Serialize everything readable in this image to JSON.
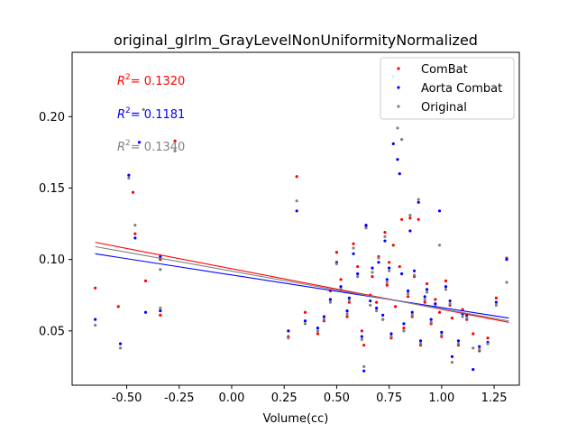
{
  "chart_data": {
    "type": "scatter",
    "title": "original_glrlm_GrayLevelNonUniformityNormalized",
    "xlabel": "Volume(cc)",
    "ylabel": "",
    "xlim": [
      -0.76,
      1.37
    ],
    "ylim": [
      0.012,
      0.245
    ],
    "xticks": [
      "-0.50",
      "-0.25",
      "0.00",
      "0.25",
      "0.50",
      "0.75",
      "1.00",
      "1.25"
    ],
    "xtick_values": [
      -0.5,
      -0.25,
      0.0,
      0.25,
      0.5,
      0.75,
      1.0,
      1.25
    ],
    "yticks": [
      "0.05",
      "0.10",
      "0.15",
      "0.20"
    ],
    "ytick_values": [
      0.05,
      0.1,
      0.15,
      0.2
    ],
    "legend_position": "top-right",
    "series": [
      {
        "name": "ComBat",
        "color": "#ff0000",
        "r2_label": "= 0.1320",
        "fit": {
          "x": [
            -0.65,
            1.32
          ],
          "y": [
            0.112,
            0.056
          ]
        },
        "points": [
          [
            -0.65,
            0.08
          ],
          [
            -0.54,
            0.067
          ],
          [
            -0.47,
            0.147
          ],
          [
            -0.46,
            0.118
          ],
          [
            -0.41,
            0.085
          ],
          [
            -0.34,
            0.061
          ],
          [
            -0.34,
            0.1
          ],
          [
            -0.27,
            0.183
          ],
          [
            0.31,
            0.158
          ],
          [
            0.27,
            0.046
          ],
          [
            0.35,
            0.063
          ],
          [
            0.41,
            0.048
          ],
          [
            0.47,
            0.078
          ],
          [
            0.5,
            0.105
          ],
          [
            0.52,
            0.086
          ],
          [
            0.55,
            0.06
          ],
          [
            0.58,
            0.111
          ],
          [
            0.6,
            0.095
          ],
          [
            0.62,
            0.05
          ],
          [
            0.64,
            0.123
          ],
          [
            0.66,
            0.075
          ],
          [
            0.67,
            0.088
          ],
          [
            0.69,
            0.07
          ],
          [
            0.7,
            0.102
          ],
          [
            0.72,
            0.058
          ],
          [
            0.73,
            0.119
          ],
          [
            0.74,
            0.082
          ],
          [
            0.76,
            0.045
          ],
          [
            0.77,
            0.11
          ],
          [
            0.78,
            0.067
          ],
          [
            0.8,
            0.095
          ],
          [
            0.81,
            0.128
          ],
          [
            0.82,
            0.052
          ],
          [
            0.84,
            0.074
          ],
          [
            0.85,
            0.129
          ],
          [
            0.86,
            0.06
          ],
          [
            0.87,
            0.088
          ],
          [
            0.89,
            0.128
          ],
          [
            0.9,
            0.04
          ],
          [
            0.92,
            0.07
          ],
          [
            0.93,
            0.083
          ],
          [
            0.95,
            0.055
          ],
          [
            0.97,
            0.072
          ],
          [
            0.99,
            0.063
          ],
          [
            1.0,
            0.046
          ],
          [
            1.02,
            0.085
          ],
          [
            1.04,
            0.068
          ],
          [
            1.05,
            0.059
          ],
          [
            1.08,
            0.04
          ],
          [
            1.1,
            0.065
          ],
          [
            1.12,
            0.058
          ],
          [
            1.15,
            0.048
          ],
          [
            1.18,
            0.036
          ],
          [
            1.22,
            0.045
          ],
          [
            1.26,
            0.073
          ],
          [
            1.31,
            0.101
          ],
          [
            0.44,
            0.057
          ],
          [
            0.63,
            0.04
          ],
          [
            0.56,
            0.07
          ],
          [
            0.75,
            0.098
          ]
        ]
      },
      {
        "name": "Aorta Combat",
        "color": "#0000ff",
        "r2_label": "= 0.1181",
        "fit": {
          "x": [
            -0.65,
            1.32
          ],
          "y": [
            0.104,
            0.059
          ]
        },
        "points": [
          [
            -0.65,
            0.058
          ],
          [
            -0.53,
            0.041
          ],
          [
            -0.49,
            0.159
          ],
          [
            -0.46,
            0.115
          ],
          [
            -0.41,
            0.063
          ],
          [
            -0.34,
            0.064
          ],
          [
            -0.34,
            0.102
          ],
          [
            -0.44,
            0.182
          ],
          [
            0.31,
            0.134
          ],
          [
            0.27,
            0.05
          ],
          [
            0.35,
            0.057
          ],
          [
            0.41,
            0.052
          ],
          [
            0.47,
            0.072
          ],
          [
            0.5,
            0.098
          ],
          [
            0.52,
            0.081
          ],
          [
            0.55,
            0.064
          ],
          [
            0.58,
            0.104
          ],
          [
            0.6,
            0.09
          ],
          [
            0.62,
            0.046
          ],
          [
            0.64,
            0.124
          ],
          [
            0.66,
            0.071
          ],
          [
            0.67,
            0.094
          ],
          [
            0.69,
            0.066
          ],
          [
            0.7,
            0.098
          ],
          [
            0.72,
            0.061
          ],
          [
            0.73,
            0.113
          ],
          [
            0.74,
            0.086
          ],
          [
            0.76,
            0.048
          ],
          [
            0.77,
            0.181
          ],
          [
            0.79,
            0.17
          ],
          [
            0.8,
            0.16
          ],
          [
            0.81,
            0.09
          ],
          [
            0.82,
            0.055
          ],
          [
            0.84,
            0.078
          ],
          [
            0.85,
            0.12
          ],
          [
            0.86,
            0.063
          ],
          [
            0.87,
            0.092
          ],
          [
            0.89,
            0.14
          ],
          [
            0.9,
            0.043
          ],
          [
            0.92,
            0.074
          ],
          [
            0.93,
            0.079
          ],
          [
            0.95,
            0.058
          ],
          [
            0.97,
            0.069
          ],
          [
            0.99,
            0.134
          ],
          [
            1.0,
            0.049
          ],
          [
            1.02,
            0.081
          ],
          [
            1.04,
            0.071
          ],
          [
            1.05,
            0.032
          ],
          [
            1.08,
            0.043
          ],
          [
            1.1,
            0.062
          ],
          [
            1.12,
            0.061
          ],
          [
            1.15,
            0.023
          ],
          [
            1.18,
            0.039
          ],
          [
            1.22,
            0.042
          ],
          [
            1.26,
            0.07
          ],
          [
            1.31,
            0.1
          ],
          [
            0.44,
            0.06
          ],
          [
            0.63,
            0.022
          ],
          [
            0.56,
            0.073
          ],
          [
            0.75,
            0.094
          ]
        ]
      },
      {
        "name": "Original",
        "color": "#808080",
        "r2_label": "= 0.1340",
        "fit": {
          "x": [
            -0.65,
            1.32
          ],
          "y": [
            0.109,
            0.057
          ]
        },
        "points": [
          [
            -0.65,
            0.054
          ],
          [
            -0.53,
            0.038
          ],
          [
            -0.49,
            0.157
          ],
          [
            -0.46,
            0.124
          ],
          [
            -0.42,
            0.205
          ],
          [
            -0.34,
            0.066
          ],
          [
            -0.34,
            0.093
          ],
          [
            -0.27,
            0.176
          ],
          [
            0.31,
            0.141
          ],
          [
            0.27,
            0.045
          ],
          [
            0.35,
            0.055
          ],
          [
            0.41,
            0.05
          ],
          [
            0.47,
            0.07
          ],
          [
            0.5,
            0.097
          ],
          [
            0.52,
            0.079
          ],
          [
            0.55,
            0.062
          ],
          [
            0.58,
            0.108
          ],
          [
            0.6,
            0.088
          ],
          [
            0.62,
            0.044
          ],
          [
            0.64,
            0.122
          ],
          [
            0.66,
            0.068
          ],
          [
            0.67,
            0.091
          ],
          [
            0.69,
            0.064
          ],
          [
            0.7,
            0.101
          ],
          [
            0.72,
            0.058
          ],
          [
            0.73,
            0.116
          ],
          [
            0.74,
            0.084
          ],
          [
            0.76,
            0.046
          ],
          [
            0.77,
            0.228
          ],
          [
            0.79,
            0.192
          ],
          [
            0.81,
            0.184
          ],
          [
            0.82,
            0.05
          ],
          [
            0.84,
            0.076
          ],
          [
            0.85,
            0.131
          ],
          [
            0.86,
            0.061
          ],
          [
            0.87,
            0.089
          ],
          [
            0.89,
            0.142
          ],
          [
            0.9,
            0.041
          ],
          [
            0.92,
            0.072
          ],
          [
            0.93,
            0.077
          ],
          [
            0.95,
            0.056
          ],
          [
            0.97,
            0.067
          ],
          [
            0.99,
            0.11
          ],
          [
            1.0,
            0.047
          ],
          [
            1.02,
            0.079
          ],
          [
            1.04,
            0.069
          ],
          [
            1.05,
            0.028
          ],
          [
            1.08,
            0.041
          ],
          [
            1.1,
            0.06
          ],
          [
            1.12,
            0.059
          ],
          [
            1.15,
            0.038
          ],
          [
            1.18,
            0.037
          ],
          [
            1.22,
            0.041
          ],
          [
            1.26,
            0.068
          ],
          [
            1.31,
            0.084
          ],
          [
            0.44,
            0.058
          ],
          [
            0.63,
            0.025
          ],
          [
            0.56,
            0.071
          ],
          [
            0.75,
            0.092
          ]
        ]
      }
    ]
  }
}
